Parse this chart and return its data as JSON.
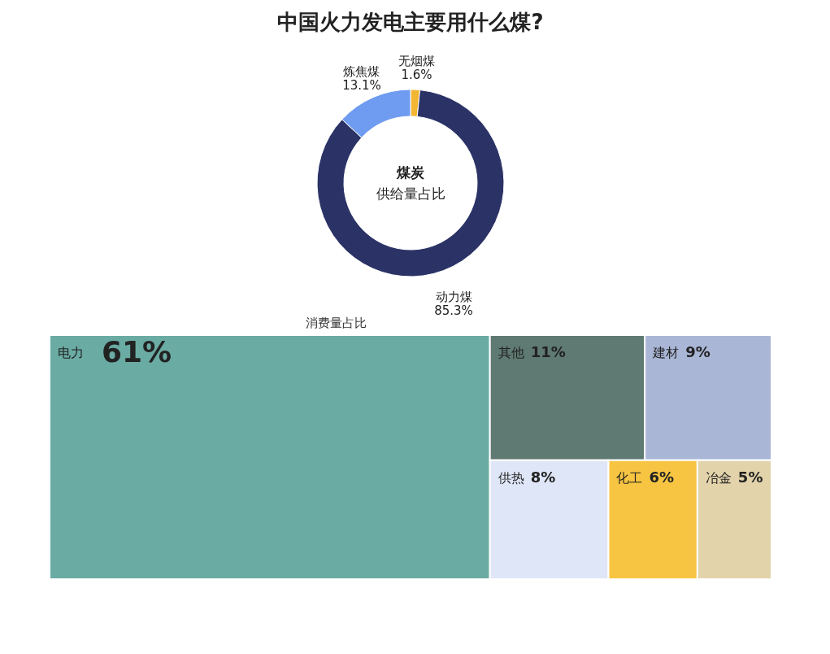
{
  "chart_data": [
    {
      "type": "donut",
      "title": "中国火力发电主要用什么煤?",
      "categories": [
        "无烟煤",
        "动力煤",
        "炼焦煤"
      ],
      "values": [
        1.6,
        85.3,
        13.1
      ],
      "colors": [
        "#f2b632",
        "#2b3366",
        "#6f9cf0"
      ],
      "value_labels": [
        "1.6%",
        "85.3%",
        "13.1%"
      ],
      "annotations": [
        "煤炭",
        "供给量占比",
        "消费量占比"
      ]
    },
    {
      "type": "other",
      "categories": [
        "电力",
        "其他",
        "建材",
        "供热",
        "化工",
        "冶金"
      ],
      "values": [
        61,
        11,
        9,
        8,
        6,
        5
      ],
      "colors": [
        "#6aaba3",
        "#5f7a72",
        "#a9b6d6",
        "#dfe6f7",
        "#f7c542",
        "#e3d3ab"
      ],
      "value_labels": [
        "61%",
        "11%",
        "9%",
        "8%",
        "6%",
        "5%"
      ]
    }
  ]
}
